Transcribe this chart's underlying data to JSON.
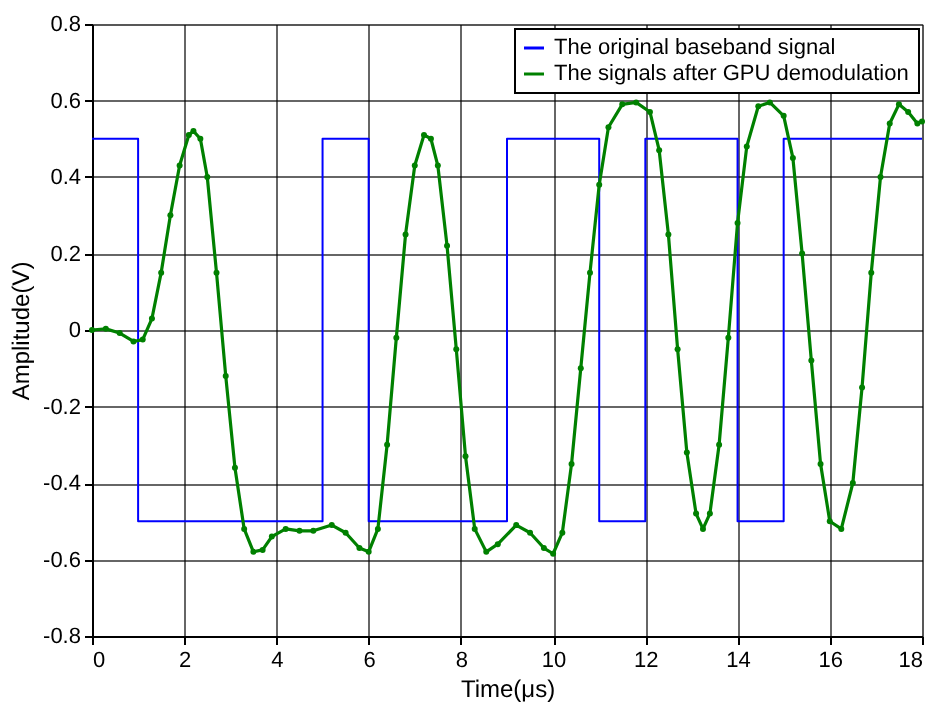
{
  "chart_data": {
    "type": "line",
    "xlabel": "Time(μs)",
    "ylabel": "Amplitude(V)",
    "xlim": [
      0,
      18
    ],
    "xticks": [
      0,
      2,
      4,
      6,
      8,
      10,
      12,
      14,
      16,
      18
    ],
    "ylim": [
      -0.8,
      0.8
    ],
    "yticks": [
      -0.8,
      -0.6,
      -0.4,
      -0.2,
      0,
      0.2,
      0.4,
      0.6,
      0.8
    ],
    "grid": true,
    "legend": "top right",
    "series": [
      {
        "name": "The original baseband signal",
        "type": "step",
        "color": "#0000ff",
        "marker": "none",
        "x": [
          0,
          1,
          5,
          6,
          9,
          11,
          12,
          14,
          15,
          18
        ],
        "values": [
          0.5,
          -0.5,
          0.5,
          -0.5,
          0.5,
          -0.5,
          0.5,
          -0.5,
          0.5,
          0.5
        ]
      },
      {
        "name": "The signals after GPU demodulation",
        "color": "#008000",
        "marker": "circle",
        "x": [
          0,
          0.3,
          0.6,
          0.9,
          1.1,
          1.3,
          1.5,
          1.7,
          1.9,
          2.1,
          2.2,
          2.35,
          2.5,
          2.7,
          2.9,
          3.1,
          3.3,
          3.5,
          3.7,
          3.9,
          4.2,
          4.5,
          4.8,
          5.2,
          5.5,
          5.8,
          6.0,
          6.2,
          6.4,
          6.6,
          6.8,
          7.0,
          7.2,
          7.35,
          7.5,
          7.7,
          7.9,
          8.1,
          8.3,
          8.55,
          8.8,
          9.2,
          9.5,
          9.8,
          10.0,
          10.2,
          10.4,
          10.6,
          10.8,
          11.0,
          11.2,
          11.5,
          11.8,
          12.1,
          12.3,
          12.5,
          12.7,
          12.9,
          13.1,
          13.25,
          13.4,
          13.6,
          13.8,
          14.0,
          14.2,
          14.45,
          14.7,
          15.0,
          15.2,
          15.4,
          15.6,
          15.8,
          16.0,
          16.25,
          16.5,
          16.7,
          16.9,
          17.1,
          17.3,
          17.5,
          17.7,
          17.9,
          18
        ],
        "values": [
          0,
          0.003,
          -0.008,
          -0.03,
          -0.025,
          0.03,
          0.15,
          0.3,
          0.43,
          0.51,
          0.52,
          0.5,
          0.4,
          0.15,
          -0.12,
          -0.36,
          -0.52,
          -0.58,
          -0.575,
          -0.54,
          -0.52,
          -0.525,
          -0.525,
          -0.51,
          -0.53,
          -0.57,
          -0.58,
          -0.52,
          -0.3,
          -0.02,
          0.25,
          0.43,
          0.51,
          0.5,
          0.43,
          0.22,
          -0.05,
          -0.33,
          -0.52,
          -0.58,
          -0.56,
          -0.51,
          -0.53,
          -0.57,
          -0.585,
          -0.53,
          -0.35,
          -0.1,
          0.15,
          0.38,
          0.53,
          0.59,
          0.595,
          0.57,
          0.47,
          0.25,
          -0.05,
          -0.32,
          -0.48,
          -0.52,
          -0.48,
          -0.3,
          -0.02,
          0.28,
          0.48,
          0.585,
          0.595,
          0.56,
          0.45,
          0.2,
          -0.08,
          -0.35,
          -0.5,
          -0.52,
          -0.4,
          -0.15,
          0.15,
          0.4,
          0.54,
          0.59,
          0.57,
          0.54,
          0.545
        ]
      }
    ]
  }
}
